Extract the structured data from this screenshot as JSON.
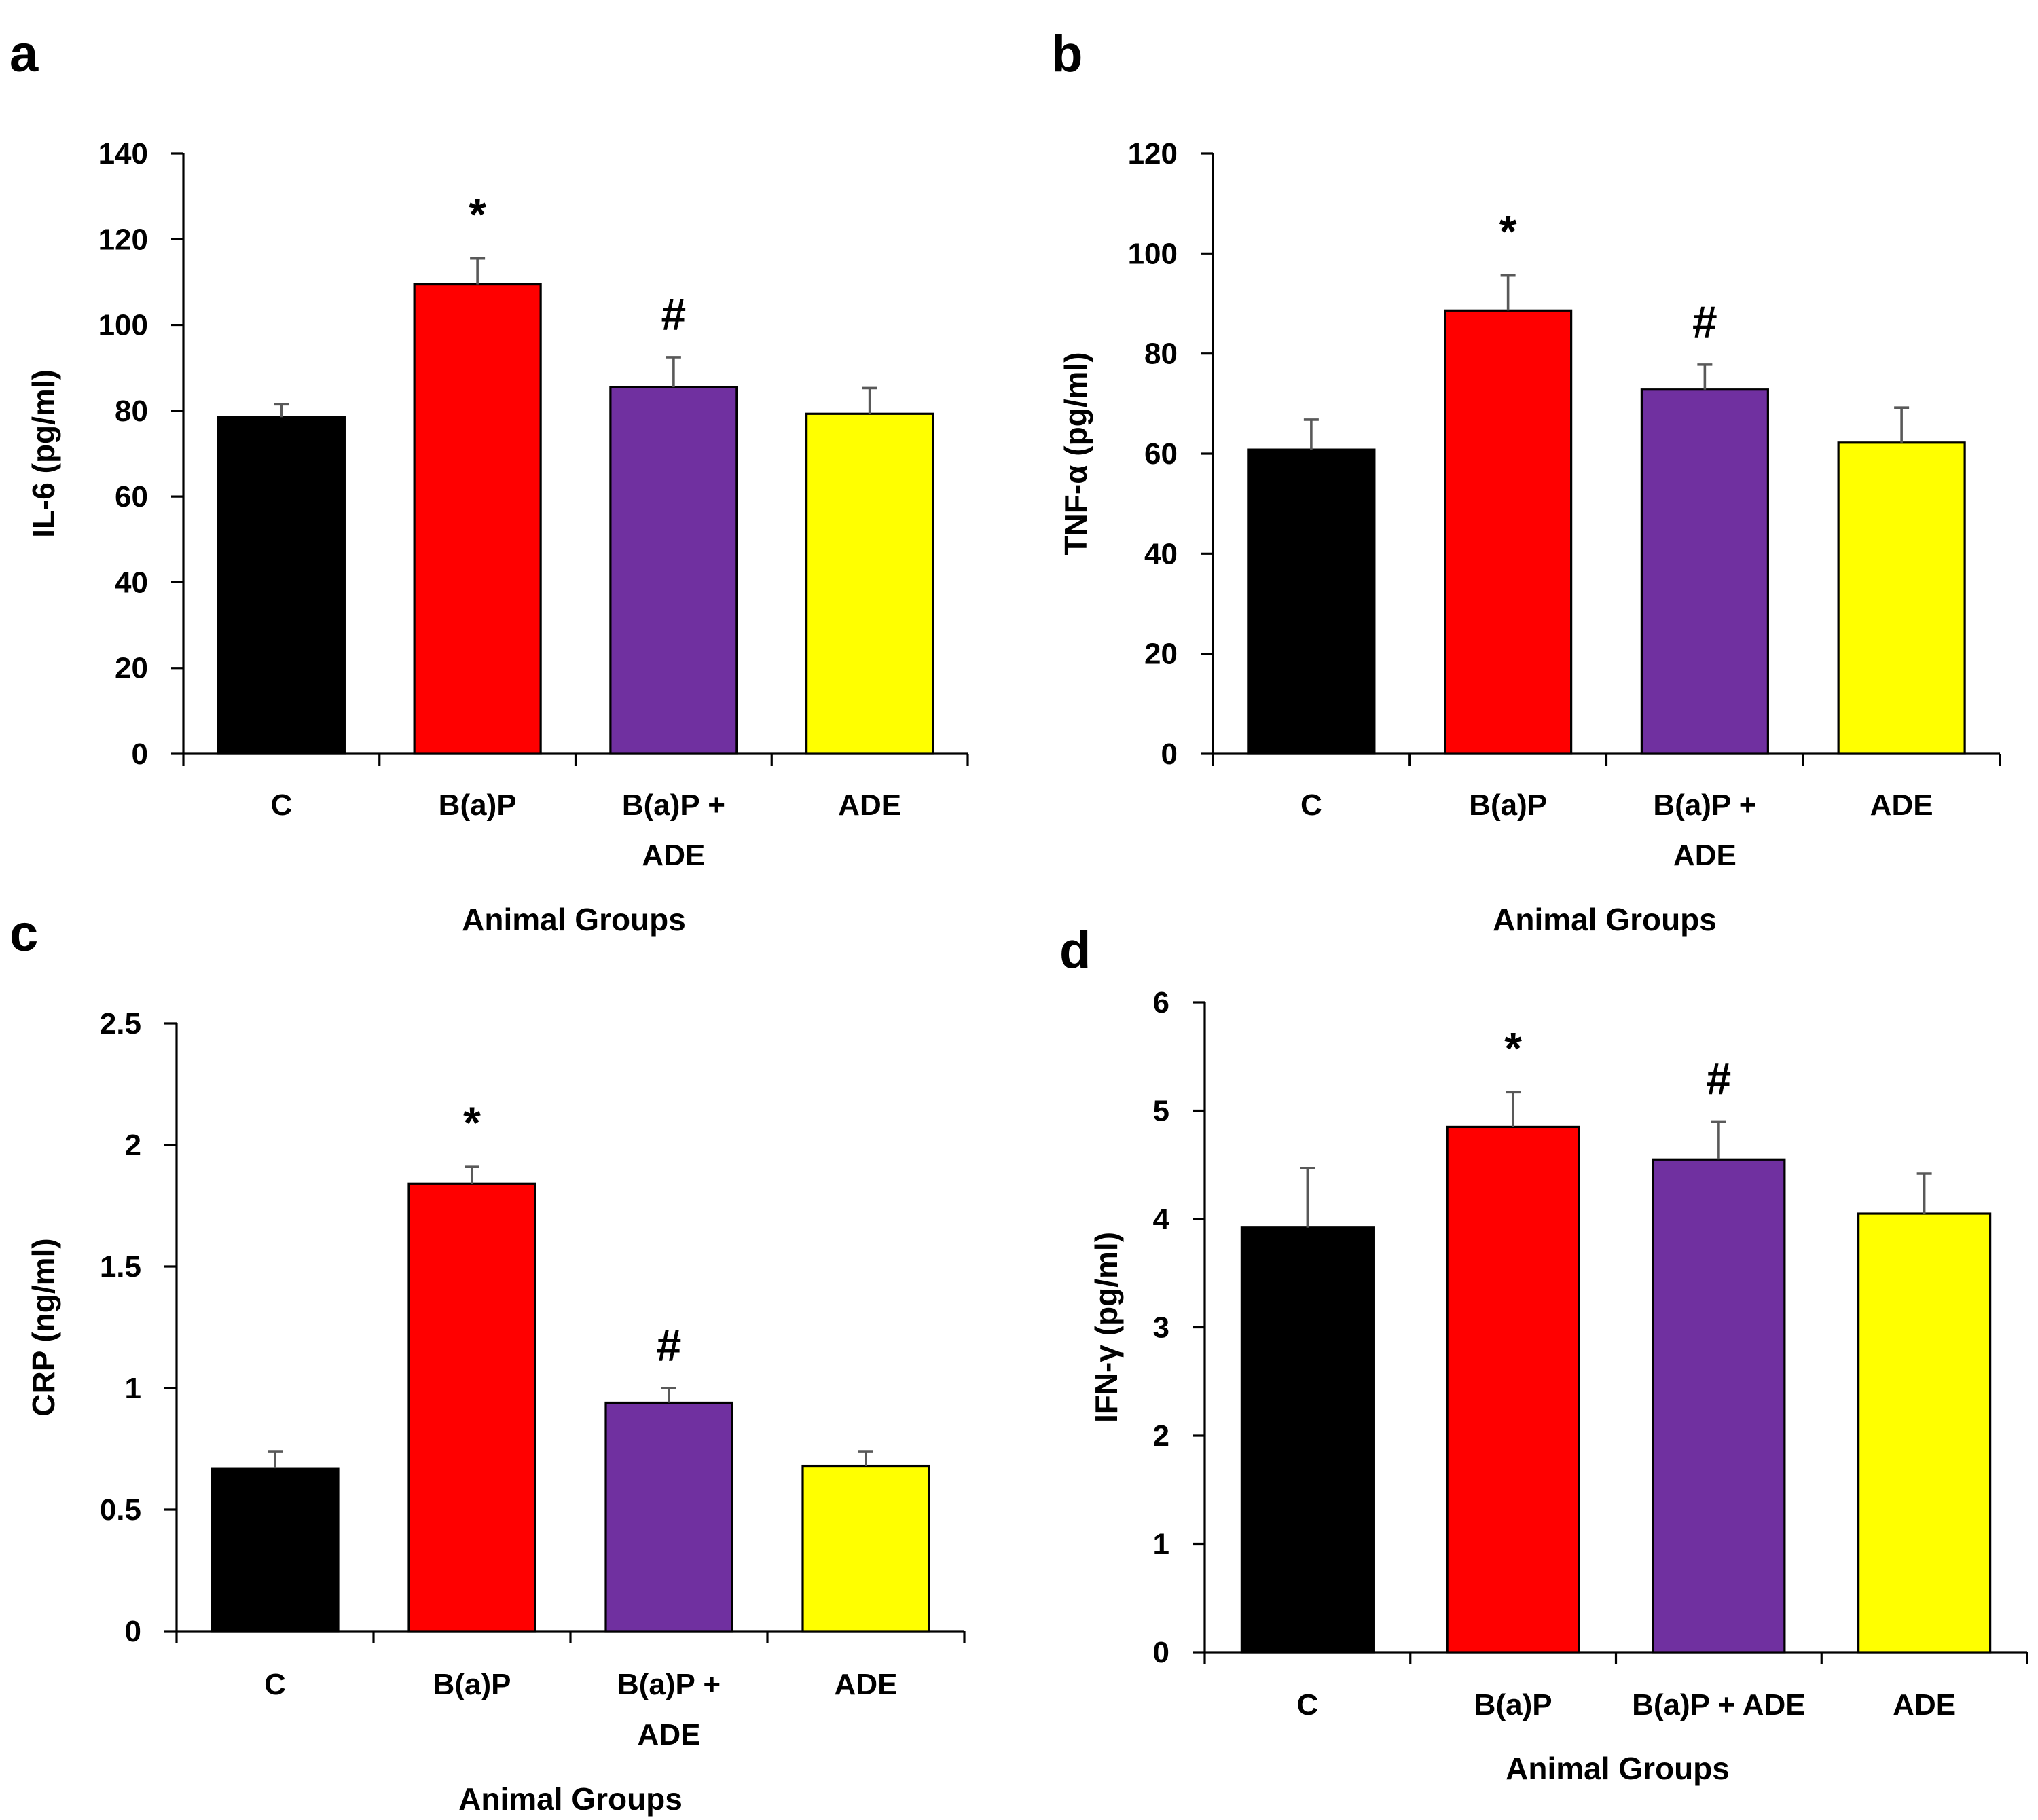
{
  "figure": {
    "colors": {
      "C": "#000000",
      "B(a)P": "#ff0000",
      "B(a)P + ADE": "#7030a0",
      "ADE": "#ffff00",
      "error_bar": "#595959"
    }
  },
  "chart_data": [
    {
      "panel": "a",
      "type": "bar",
      "title": "",
      "xlabel": "Animal Groups",
      "ylabel": "IL-6 (pg/ml)",
      "ylim": [
        0,
        140
      ],
      "yticks": [
        "0",
        "20",
        "40",
        "60",
        "80",
        "100",
        "120",
        "140"
      ],
      "categories": [
        "C",
        "B(a)P",
        "B(a)P +\nADE",
        "ADE"
      ],
      "values": [
        78.5,
        109.5,
        85.5,
        79.3
      ],
      "errors": [
        3,
        6,
        7,
        6
      ],
      "annotations": [
        "",
        "*",
        "#",
        ""
      ],
      "grid": false,
      "legend": "none"
    },
    {
      "panel": "b",
      "type": "bar",
      "title": "",
      "xlabel": "Animal Groups",
      "ylabel": "TNF-α (pg/ml)",
      "ylim": [
        0,
        120
      ],
      "yticks": [
        "0",
        "20",
        "40",
        "60",
        "80",
        "100",
        "120"
      ],
      "categories": [
        "C",
        "B(a)P",
        "B(a)P +\nADE",
        "ADE"
      ],
      "values": [
        60.8,
        88.6,
        72.8,
        62.2
      ],
      "errors": [
        6,
        7,
        5,
        7
      ],
      "annotations": [
        "",
        "*",
        "#",
        ""
      ],
      "grid": false,
      "legend": "none"
    },
    {
      "panel": "c",
      "type": "bar",
      "title": "",
      "xlabel": "Animal Groups",
      "ylabel": "CRP (ng/ml)",
      "ylim": [
        0,
        2.5
      ],
      "yticks": [
        "0",
        "0.5",
        "1",
        "1.5",
        "2",
        "2.5"
      ],
      "categories": [
        "C",
        "B(a)P",
        "B(a)P +\nADE",
        "ADE"
      ],
      "values": [
        0.67,
        1.84,
        0.94,
        0.68
      ],
      "errors": [
        0.07,
        0.07,
        0.06,
        0.06
      ],
      "annotations": [
        "",
        "*",
        "#",
        ""
      ],
      "grid": false,
      "legend": "none"
    },
    {
      "panel": "d",
      "type": "bar",
      "title": "",
      "xlabel": "Animal Groups",
      "ylabel": "IFN-γ  (pg/ml)",
      "ylim": [
        0,
        6
      ],
      "yticks": [
        "0",
        "1",
        "2",
        "3",
        "4",
        "5",
        "6"
      ],
      "categories": [
        "C",
        "B(a)P",
        "B(a)P + ADE",
        "ADE"
      ],
      "values": [
        3.92,
        4.85,
        4.55,
        4.05
      ],
      "errors": [
        0.55,
        0.32,
        0.35,
        0.37
      ],
      "annotations": [
        "",
        "*",
        "#",
        ""
      ],
      "grid": false,
      "legend": "none"
    }
  ]
}
